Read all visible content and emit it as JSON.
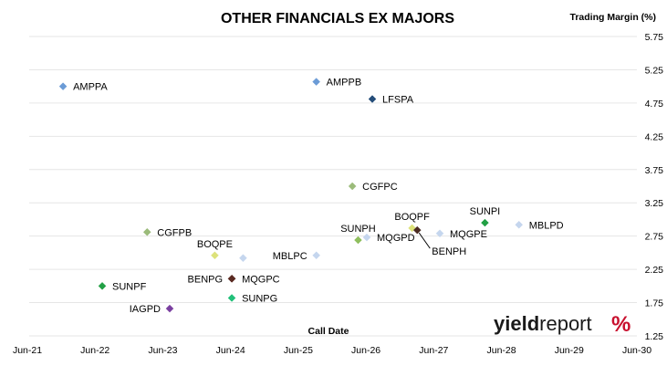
{
  "chart_data": {
    "type": "scatter",
    "title": "OTHER FINANCIALS EX MAJORS",
    "xlabel": "Call Date",
    "ylabel": "Trading Margin (%)",
    "xlim": [
      "2021-06-01",
      "2030-06-01"
    ],
    "ylim": [
      1.25,
      5.75
    ],
    "x_ticks": [
      "Jun-21",
      "Jun-22",
      "Jun-23",
      "Jun-24",
      "Jun-25",
      "Jun-26",
      "Jun-27",
      "Jun-28",
      "Jun-29",
      "Jun-30"
    ],
    "y_ticks": [
      "1.25",
      "1.75",
      "2.25",
      "2.75",
      "3.25",
      "3.75",
      "4.25",
      "4.75",
      "5.25",
      "5.75"
    ],
    "grid": "horizontal",
    "points": [
      {
        "label": "AMPPA",
        "x": "2021-12-01",
        "y": 5.0,
        "color": "#6b9bd6",
        "shape": "diamond",
        "label_side": "right"
      },
      {
        "label": "AMPPB",
        "x": "2025-09-01",
        "y": 5.07,
        "color": "#6b9bd6",
        "shape": "diamond",
        "label_side": "right"
      },
      {
        "label": "LFSPA",
        "x": "2026-07-01",
        "y": 4.81,
        "color": "#254e7a",
        "shape": "diamond",
        "label_side": "right"
      },
      {
        "label": "CGFPC",
        "x": "2026-03-15",
        "y": 3.5,
        "color": "#9bbb7a",
        "shape": "diamond",
        "label_side": "right"
      },
      {
        "label": "SUNPI",
        "x": "2028-03-01",
        "y": 2.95,
        "color": "#22a045",
        "shape": "diamond",
        "label_side": "above"
      },
      {
        "label": "MBLPD",
        "x": "2028-09-01",
        "y": 2.92,
        "color": "#c5d6ee",
        "shape": "diamond",
        "label_side": "right"
      },
      {
        "label": "BOQPF",
        "x": "2027-02-01",
        "y": 2.87,
        "color": "#dde27a",
        "shape": "diamond",
        "label_side": "above"
      },
      {
        "label": "BENPH",
        "x": "2027-03-01",
        "y": 2.84,
        "color": "#4a2a22",
        "shape": "diamond",
        "label_side": "below-right"
      },
      {
        "label": "MQGPE",
        "x": "2027-07-01",
        "y": 2.79,
        "color": "#c5d6ee",
        "shape": "diamond",
        "label_side": "right"
      },
      {
        "label": "MQGPD",
        "x": "2026-06-01",
        "y": 2.73,
        "color": "#c5d6ee",
        "shape": "diamond",
        "label_side": "right"
      },
      {
        "label": "SUNPH",
        "x": "2026-04-15",
        "y": 2.69,
        "color": "#8fbf5e",
        "shape": "diamond",
        "label_side": "above"
      },
      {
        "label": "CGFPB",
        "x": "2023-03-01",
        "y": 2.81,
        "color": "#9bbb7a",
        "shape": "diamond",
        "label_side": "right"
      },
      {
        "label": "BOQPE",
        "x": "2024-03-01",
        "y": 2.46,
        "color": "#dde27a",
        "shape": "diamond",
        "label_side": "above"
      },
      {
        "label": "MBLPC",
        "x": "2025-09-01",
        "y": 2.46,
        "color": "#c5d6ee",
        "shape": "diamond",
        "label_side": "left"
      },
      {
        "label": "",
        "x": "2024-08-01",
        "y": 2.42,
        "color": "#c5d6ee",
        "shape": "diamond",
        "label_side": "none"
      },
      {
        "label": "MQGPC",
        "x": "2024-06-01",
        "y": 2.11,
        "color": "#5a2a22",
        "shape": "diamond",
        "label_side": "right"
      },
      {
        "label": "BENPG",
        "x": "2024-06-01",
        "y": 2.11,
        "color": "#5a2a22",
        "shape": "diamond",
        "label_side": "left"
      },
      {
        "label": "SUNPF",
        "x": "2022-07-01",
        "y": 2.0,
        "color": "#22a045",
        "shape": "diamond",
        "label_side": "right"
      },
      {
        "label": "SUNPG",
        "x": "2024-06-01",
        "y": 1.82,
        "color": "#22c07a",
        "shape": "diamond",
        "label_side": "right"
      },
      {
        "label": "IAGPD",
        "x": "2023-07-01",
        "y": 1.66,
        "color": "#7a3fa0",
        "shape": "diamond",
        "label_side": "left"
      }
    ]
  },
  "branding": {
    "name_bold": "yield",
    "name_light": "report",
    "symbol": "%"
  }
}
